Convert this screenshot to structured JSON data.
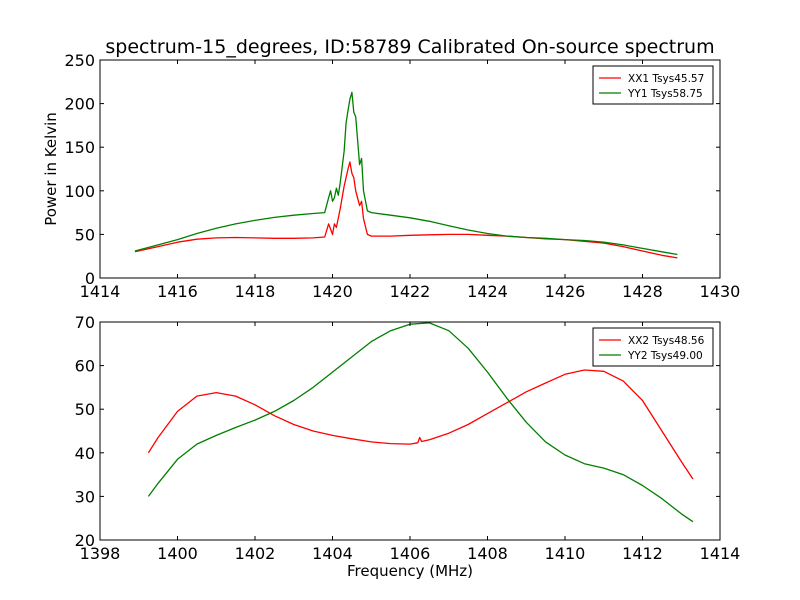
{
  "title": "spectrum-15_degrees, ID:58789 Calibrated On-source spectrum",
  "chart_data": [
    {
      "type": "line",
      "ylabel": "Power in Kelvin",
      "xlabel": "",
      "xlim": [
        1414,
        1430
      ],
      "ylim": [
        0,
        250
      ],
      "xticks": [
        "1414",
        "1416",
        "1418",
        "1420",
        "1422",
        "1424",
        "1426",
        "1428",
        "1430"
      ],
      "yticks": [
        "0",
        "50",
        "100",
        "150",
        "200",
        "250"
      ],
      "legend": "top-right",
      "series": [
        {
          "name": "XX1 Tsys45.57",
          "color": "#ff0000",
          "x": [
            1414.9,
            1415.5,
            1416.0,
            1416.5,
            1417.0,
            1417.5,
            1418.0,
            1418.5,
            1419.0,
            1419.5,
            1419.8,
            1419.9,
            1420.0,
            1420.05,
            1420.1,
            1420.2,
            1420.3,
            1420.4,
            1420.45,
            1420.5,
            1420.55,
            1420.6,
            1420.7,
            1420.75,
            1420.8,
            1420.9,
            1421.0,
            1421.5,
            1422.0,
            1422.5,
            1423.0,
            1423.5,
            1424.0,
            1424.5,
            1425.0,
            1425.5,
            1426.0,
            1426.5,
            1427.0,
            1427.5,
            1428.0,
            1428.5,
            1428.9
          ],
          "y": [
            30,
            36,
            41,
            44.5,
            46,
            46.5,
            46,
            45.5,
            45.5,
            46,
            47,
            62,
            50,
            62,
            58,
            80,
            105,
            125,
            133,
            120,
            115,
            100,
            83,
            88,
            68,
            50,
            48,
            48,
            49,
            49.5,
            50,
            50,
            49,
            48,
            46.5,
            45,
            44,
            42,
            40,
            36,
            31,
            26,
            23
          ]
        },
        {
          "name": "YY1 Tsys58.75",
          "color": "#008000",
          "x": [
            1414.9,
            1415.5,
            1416.0,
            1416.5,
            1417.0,
            1417.5,
            1418.0,
            1418.5,
            1419.0,
            1419.5,
            1419.8,
            1419.9,
            1419.95,
            1420.0,
            1420.05,
            1420.1,
            1420.15,
            1420.2,
            1420.3,
            1420.35,
            1420.4,
            1420.45,
            1420.5,
            1420.55,
            1420.6,
            1420.7,
            1420.75,
            1420.8,
            1420.9,
            1421.0,
            1421.5,
            1422.0,
            1422.5,
            1423.0,
            1423.5,
            1424.0,
            1424.5,
            1425.0,
            1425.5,
            1426.0,
            1426.5,
            1427.0,
            1427.5,
            1428.0,
            1428.5,
            1428.9
          ],
          "y": [
            31,
            38,
            44,
            51,
            57,
            62,
            66,
            69.5,
            72,
            74,
            75,
            92,
            100,
            88,
            92,
            103,
            95,
            110,
            145,
            178,
            192,
            205,
            213,
            190,
            185,
            130,
            137,
            100,
            77,
            75,
            72,
            69,
            65,
            60,
            55,
            51,
            48,
            46.5,
            45.5,
            44,
            43,
            41,
            38,
            34,
            30,
            27
          ]
        }
      ]
    },
    {
      "type": "line",
      "xlabel": "Frequency (MHz)",
      "ylabel": "",
      "xlim": [
        1398,
        1414
      ],
      "ylim": [
        20,
        70
      ],
      "xticks": [
        "1398",
        "1400",
        "1402",
        "1404",
        "1406",
        "1408",
        "1410",
        "1412",
        "1414"
      ],
      "yticks": [
        "20",
        "30",
        "40",
        "50",
        "60",
        "70"
      ],
      "legend": "top-right",
      "series": [
        {
          "name": "XX2 Tsys48.56",
          "color": "#ff0000",
          "x": [
            1399.25,
            1399.5,
            1400.0,
            1400.5,
            1401.0,
            1401.5,
            1402.0,
            1402.5,
            1403.0,
            1403.5,
            1404.0,
            1404.5,
            1405.0,
            1405.5,
            1406.0,
            1406.2,
            1406.25,
            1406.3,
            1406.5,
            1407.0,
            1407.5,
            1408.0,
            1408.5,
            1409.0,
            1409.5,
            1410.0,
            1410.5,
            1411.0,
            1411.5,
            1412.0,
            1412.5,
            1413.0,
            1413.3
          ],
          "y": [
            40,
            43.5,
            49.5,
            53,
            53.8,
            53,
            51,
            48.5,
            46.5,
            45,
            44,
            43.2,
            42.5,
            42.1,
            42,
            42.3,
            43.5,
            42.6,
            43,
            44.5,
            46.5,
            49,
            51.5,
            54,
            56,
            58,
            59,
            58.7,
            56.5,
            52,
            45,
            38,
            34
          ]
        },
        {
          "name": "YY2 Tsys49.00",
          "color": "#008000",
          "x": [
            1399.25,
            1399.5,
            1400.0,
            1400.5,
            1401.0,
            1401.5,
            1402.0,
            1402.5,
            1403.0,
            1403.5,
            1404.0,
            1404.5,
            1405.0,
            1405.5,
            1406.0,
            1406.5,
            1407.0,
            1407.5,
            1408.0,
            1408.5,
            1409.0,
            1409.5,
            1410.0,
            1410.5,
            1411.0,
            1411.5,
            1412.0,
            1412.5,
            1413.0,
            1413.3
          ],
          "y": [
            30,
            33,
            38.5,
            42,
            44,
            45.8,
            47.5,
            49.5,
            52,
            55,
            58.5,
            62,
            65.5,
            68,
            69.5,
            69.8,
            68,
            64,
            58.5,
            52.5,
            47,
            42.5,
            39.5,
            37.5,
            36.5,
            35,
            32.5,
            29.5,
            26,
            24.2
          ]
        }
      ]
    }
  ]
}
